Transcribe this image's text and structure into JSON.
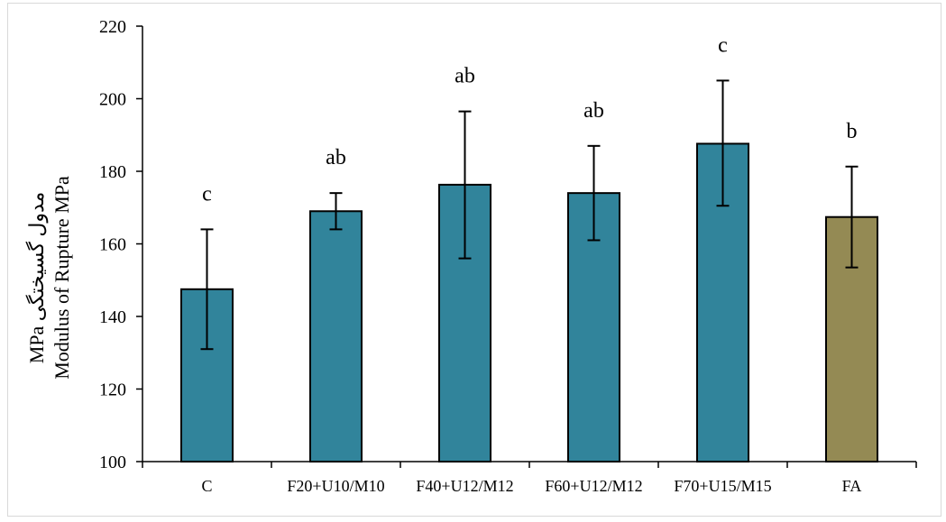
{
  "chart_data": {
    "type": "bar",
    "categories": [
      "C",
      "F20+U10/M10",
      "F40+U12/M12",
      "F60+U12/M12",
      "F70+U15/M15",
      "FA"
    ],
    "values": [
      147.5,
      169,
      176.3,
      174,
      187.6,
      167.4
    ],
    "error_low": [
      131,
      164,
      156,
      161,
      170.5,
      153.5
    ],
    "error_high": [
      164,
      174,
      196.5,
      187,
      205,
      181.3
    ],
    "significance_labels": [
      "c",
      "ab",
      "ab",
      "ab",
      "c",
      "b"
    ],
    "bar_colors": [
      "#31849b",
      "#31849b",
      "#31849b",
      "#31849b",
      "#31849b",
      "#948a54"
    ],
    "ylabel_lines": [
      "MPa مدول گسیختگی",
      "Modulus of Rupture MPa"
    ],
    "xlabel": "",
    "ylim": [
      100,
      220
    ],
    "yticks": [
      "100",
      "120",
      "140",
      "160",
      "180",
      "200",
      "220"
    ],
    "grid": false
  }
}
